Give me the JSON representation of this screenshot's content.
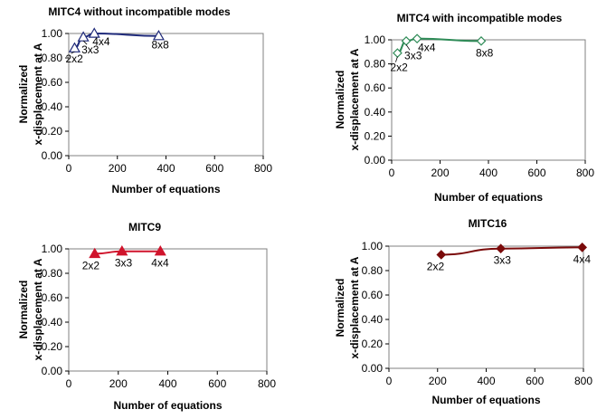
{
  "chart_data": [
    {
      "type": "line",
      "title": "MITC4 without incompatible modes",
      "xlabel": "Number of equations",
      "ylabel": [
        "Normalized",
        "x-displacement at A"
      ],
      "xlim": [
        0,
        800
      ],
      "ylim": [
        0,
        1.0
      ],
      "xticks": [
        "0",
        "200",
        "400",
        "600",
        "800"
      ],
      "yticks": [
        "0.00",
        "0.20",
        "0.40",
        "0.60",
        "0.80",
        "1.00"
      ],
      "color": "#1f2a7a",
      "marker": "triangle-open",
      "grid": false,
      "series": [
        {
          "x": [
            24,
            60,
            105,
            370
          ],
          "y": [
            0.88,
            0.97,
            1.0,
            0.98
          ],
          "labels": [
            "2x2",
            "3x3",
            "4x4",
            "8x8"
          ]
        }
      ]
    },
    {
      "type": "line",
      "title": "MITC4 with incompatible modes",
      "xlabel": "Number of equations",
      "ylabel": [
        "Normalized",
        "x-displacement at A"
      ],
      "xlim": [
        0,
        800
      ],
      "ylim": [
        0,
        1.0
      ],
      "xticks": [
        "0",
        "200",
        "400",
        "600",
        "800"
      ],
      "yticks": [
        "0.00",
        "0.20",
        "0.40",
        "0.60",
        "0.80",
        "1.00"
      ],
      "color": "#2e8b57",
      "marker": "diamond-open",
      "grid": false,
      "series": [
        {
          "x": [
            24,
            60,
            105,
            370
          ],
          "y": [
            0.89,
            0.99,
            1.01,
            0.99
          ],
          "labels": [
            "2x2",
            "3x3",
            "4x4",
            "8x8"
          ]
        }
      ]
    },
    {
      "type": "line",
      "title": "MITC9",
      "xlabel": "Number of equations",
      "ylabel": [
        "Normalized",
        "x-displacement at A"
      ],
      "xlim": [
        0,
        800
      ],
      "ylim": [
        0,
        1.0
      ],
      "xticks": [
        "0",
        "200",
        "400",
        "600",
        "800"
      ],
      "yticks": [
        "0.00",
        "0.20",
        "0.40",
        "0.60",
        "0.80",
        "1.00"
      ],
      "color": "#d0142c",
      "marker": "triangle-filled",
      "grid": false,
      "series": [
        {
          "x": [
            105,
            215,
            370
          ],
          "y": [
            0.96,
            0.98,
            0.98
          ],
          "labels": [
            "2x2",
            "3x3",
            "4x4"
          ]
        }
      ]
    },
    {
      "type": "line",
      "title": "MITC16",
      "xlabel": "Number of equations",
      "ylabel": [
        "Normalized",
        "x-displacement at A"
      ],
      "xlim": [
        0,
        800
      ],
      "ylim": [
        0,
        1.0
      ],
      "xticks": [
        "0",
        "200",
        "400",
        "600",
        "800"
      ],
      "yticks": [
        "0.00",
        "0.20",
        "0.40",
        "0.60",
        "0.80",
        "1.00"
      ],
      "color": "#7a0a0a",
      "marker": "diamond-filled",
      "grid": false,
      "series": [
        {
          "x": [
            215,
            460,
            795
          ],
          "y": [
            0.93,
            0.98,
            0.99
          ],
          "labels": [
            "2x2",
            "3x3",
            "4x4"
          ]
        }
      ]
    }
  ]
}
